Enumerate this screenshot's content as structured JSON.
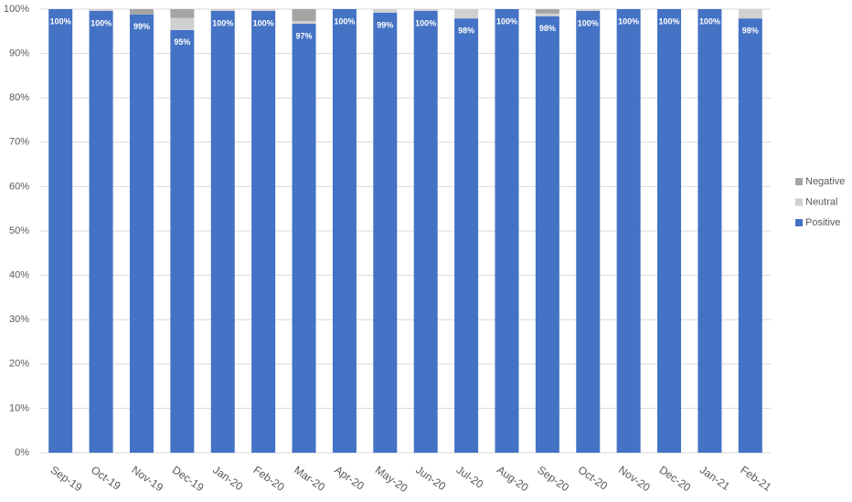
{
  "chart_data": {
    "type": "stacked_bar",
    "categories": [
      "Sep-19",
      "Oct-19",
      "Nov-19",
      "Dec-19",
      "Jan-20",
      "Feb-20",
      "Mar-20",
      "Apr-20",
      "May-20",
      "Jun-20",
      "Jul-20",
      "Aug-20",
      "Sep-20",
      "Oct-20",
      "Nov-20",
      "Dec-20",
      "Jan-21",
      "Feb-21"
    ],
    "series": [
      {
        "name": "Positive",
        "color": "#4472c4",
        "values": [
          100,
          99.6,
          98.8,
          95.3,
          99.6,
          99.6,
          96.7,
          100,
          99.2,
          99.6,
          97.9,
          100,
          98.4,
          99.6,
          100,
          100,
          100,
          97.9
        ],
        "value_labels": [
          "100%",
          "100%",
          "99%",
          "95%",
          "100%",
          "100%",
          "97%",
          "100%",
          "99%",
          "100%",
          "98%",
          "100%",
          "98%",
          "100%",
          "100%",
          "100%",
          "100%",
          "98%"
        ]
      },
      {
        "name": "Neutral",
        "color": "#d0d0d0",
        "values": [
          0,
          0.4,
          0,
          2.7,
          0.4,
          0.4,
          0.6,
          0,
          0.8,
          0.4,
          2.1,
          0,
          0.6,
          0.4,
          0,
          0,
          0,
          2.1
        ]
      },
      {
        "name": "Negative",
        "color": "#a5a5a5",
        "values": [
          0,
          0,
          1.2,
          2.0,
          0,
          0,
          2.7,
          0,
          0,
          0,
          0,
          0,
          1.0,
          0,
          0,
          0,
          0,
          0
        ]
      }
    ],
    "ylim": [
      0,
      100
    ],
    "yticks": [
      {
        "value": 0,
        "label": "0%"
      },
      {
        "value": 10,
        "label": "10%"
      },
      {
        "value": 20,
        "label": "20%"
      },
      {
        "value": 30,
        "label": "30%"
      },
      {
        "value": 40,
        "label": "40%"
      },
      {
        "value": 50,
        "label": "50%"
      },
      {
        "value": 60,
        "label": "60%"
      },
      {
        "value": 70,
        "label": "70%"
      },
      {
        "value": 80,
        "label": "80%"
      },
      {
        "value": 90,
        "label": "90%"
      },
      {
        "value": 100,
        "label": "100%"
      }
    ],
    "grid": true,
    "legend": "right"
  }
}
